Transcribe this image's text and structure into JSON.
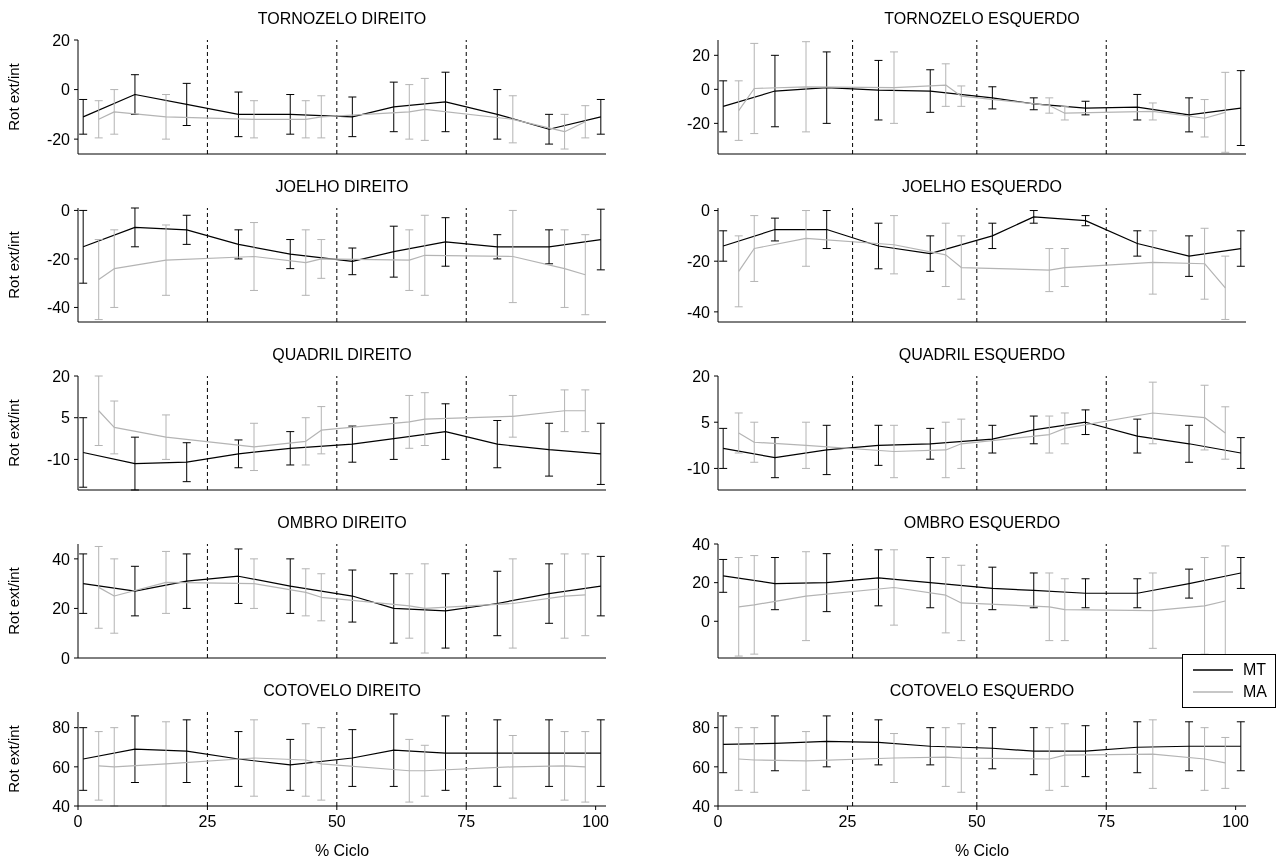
{
  "chart_data": [
    {
      "type": "line",
      "title": "TORNOZELO DIREITO",
      "ylabel": "Rot ext/int",
      "xlim": [
        0,
        102
      ],
      "xticks": [
        0,
        25,
        50,
        75,
        100
      ],
      "ylim": [
        -26,
        20
      ],
      "yticks": [
        -20,
        0,
        20
      ],
      "tick_labels": "y",
      "marker": "none",
      "ref_lines": [
        {
          "axis": "x",
          "value": 25,
          "line_style": "dashed"
        },
        {
          "axis": "x",
          "value": 50,
          "line_style": "dashed"
        },
        {
          "axis": "x",
          "value": 75,
          "line_style": "dashed"
        }
      ],
      "series": [
        {
          "color": "#000000",
          "x": [
            1,
            11,
            21,
            31,
            41,
            53,
            61,
            71,
            81,
            91,
            101
          ],
          "values": [
            -11,
            -2,
            -6,
            -10,
            -10,
            -11,
            -7,
            -5,
            -10,
            -16,
            -11
          ],
          "errors": [
            7,
            8,
            8.5,
            9,
            8,
            8,
            10,
            12,
            10,
            6,
            7
          ]
        },
        {
          "color": "#b4b4b4",
          "x": [
            4,
            7,
            17,
            34,
            44,
            47,
            64,
            67,
            84,
            94,
            98
          ],
          "values": [
            -12,
            -9,
            -11,
            -12,
            -12,
            -11,
            -9,
            -8,
            -12,
            -17,
            -13
          ],
          "errors": [
            7.5,
            9,
            9,
            7.5,
            7.5,
            8.5,
            11,
            12.5,
            9.5,
            7,
            6.5
          ]
        }
      ]
    },
    {
      "type": "line",
      "title": "TORNOZELO ESQUERDO",
      "xlim": [
        0,
        102
      ],
      "xticks": [
        0,
        25,
        50,
        75,
        100
      ],
      "ylim": [
        -38,
        29
      ],
      "yticks": [
        -20,
        0,
        20
      ],
      "tick_labels": "y",
      "marker": "none",
      "ref_lines": [
        {
          "axis": "x",
          "value": 26,
          "line_style": "dashed"
        },
        {
          "axis": "x",
          "value": 50,
          "line_style": "dashed"
        },
        {
          "axis": "x",
          "value": 75,
          "line_style": "dashed"
        }
      ],
      "series": [
        {
          "color": "#000000",
          "x": [
            1,
            11,
            21,
            31,
            41,
            53,
            61,
            71,
            81,
            91,
            101
          ],
          "values": [
            -10,
            -1,
            1,
            -0.5,
            -1,
            -5,
            -8.5,
            -11,
            -10.5,
            -15,
            -11
          ],
          "errors": [
            15,
            21,
            21,
            17.5,
            12.5,
            6.5,
            3.5,
            4,
            7.5,
            10,
            22
          ]
        },
        {
          "color": "#b4b4b4",
          "x": [
            4,
            7,
            17,
            34,
            44,
            47,
            64,
            67,
            84,
            94,
            98
          ],
          "values": [
            -12.5,
            0.5,
            1.5,
            1,
            2.5,
            -4,
            -9.5,
            -14,
            -13,
            -17,
            -13.5
          ],
          "errors": [
            17.5,
            26.5,
            26.5,
            21,
            12.5,
            6,
            4.5,
            4,
            5,
            11,
            23.5
          ]
        }
      ]
    },
    {
      "type": "line",
      "title": "JOELHO DIREITO",
      "ylabel": "Rot ext/int",
      "xlim": [
        0,
        102
      ],
      "xticks": [
        0,
        25,
        50,
        75,
        100
      ],
      "ylim": [
        -46,
        1
      ],
      "yticks": [
        -40,
        -20,
        0
      ],
      "tick_labels": "y",
      "marker": "none",
      "ref_lines": [
        {
          "axis": "x",
          "value": 25,
          "line_style": "dashed"
        },
        {
          "axis": "x",
          "value": 50,
          "line_style": "dashed"
        },
        {
          "axis": "x",
          "value": 75,
          "line_style": "dashed"
        }
      ],
      "series": [
        {
          "color": "#000000",
          "x": [
            1,
            11,
            21,
            31,
            41,
            53,
            61,
            71,
            81,
            91,
            101
          ],
          "values": [
            -15,
            -7,
            -8,
            -14,
            -18,
            -21,
            -17,
            -13,
            -15,
            -15,
            -12
          ],
          "errors": [
            15,
            8,
            6,
            6,
            6,
            5.5,
            10.5,
            10,
            5,
            7,
            12.5
          ]
        },
        {
          "color": "#b4b4b4",
          "x": [
            4,
            7,
            17,
            34,
            44,
            47,
            64,
            67,
            84,
            94,
            98
          ],
          "values": [
            -28.5,
            -24,
            -20.5,
            -19,
            -21.5,
            -20,
            -20.5,
            -18.5,
            -19,
            -24,
            -26.5
          ],
          "errors": [
            16.5,
            16,
            14.5,
            14,
            13.5,
            8,
            12.5,
            16.5,
            19,
            16,
            16.5
          ]
        }
      ]
    },
    {
      "type": "line",
      "title": "JOELHO ESQUERDO",
      "xlim": [
        0,
        102
      ],
      "xticks": [
        0,
        25,
        50,
        75,
        100
      ],
      "ylim": [
        -44,
        1
      ],
      "yticks": [
        -40,
        -20,
        0
      ],
      "tick_labels": "y",
      "marker": "none",
      "ref_lines": [
        {
          "axis": "x",
          "value": 26,
          "line_style": "dashed"
        },
        {
          "axis": "x",
          "value": 50,
          "line_style": "dashed"
        },
        {
          "axis": "x",
          "value": 75,
          "line_style": "dashed"
        }
      ],
      "series": [
        {
          "color": "#000000",
          "x": [
            1,
            11,
            21,
            31,
            41,
            53,
            61,
            71,
            81,
            91,
            101
          ],
          "values": [
            -14,
            -7.5,
            -7.5,
            -14,
            -17,
            -10,
            -2.5,
            -4,
            -13,
            -18,
            -15
          ],
          "errors": [
            6,
            4.5,
            7.5,
            9,
            7,
            5,
            2.5,
            2,
            5,
            8,
            7
          ]
        },
        {
          "color": "#b4b4b4",
          "x": [
            4,
            7,
            17,
            34,
            44,
            47,
            64,
            67,
            84,
            94,
            98
          ],
          "values": [
            -24,
            -15,
            -11,
            -13.5,
            -17.5,
            -22.5,
            -23.5,
            -22.5,
            -20.5,
            -21,
            -30.5
          ],
          "errors": [
            14,
            13,
            11,
            11.5,
            12.5,
            12.5,
            8.5,
            7.5,
            12.5,
            14,
            12.5
          ]
        }
      ]
    },
    {
      "type": "line",
      "title": "QUADRIL DIREITO",
      "ylabel": "Rot ext/int",
      "xlim": [
        0,
        102
      ],
      "xticks": [
        0,
        25,
        50,
        75,
        100
      ],
      "ylim": [
        -21,
        20
      ],
      "yticks": [
        -10,
        5,
        20
      ],
      "tick_labels": "y",
      "marker": "none",
      "ref_lines": [
        {
          "axis": "x",
          "value": 25,
          "line_style": "dashed"
        },
        {
          "axis": "x",
          "value": 50,
          "line_style": "dashed"
        },
        {
          "axis": "x",
          "value": 75,
          "line_style": "dashed"
        }
      ],
      "series": [
        {
          "color": "#000000",
          "x": [
            1,
            11,
            21,
            31,
            41,
            53,
            61,
            71,
            81,
            91,
            101
          ],
          "values": [
            -7.5,
            -11.5,
            -11,
            -8,
            -6,
            -4.5,
            -2.5,
            0,
            -4.5,
            -6.5,
            -8
          ],
          "errors": [
            12.5,
            9.5,
            7,
            5,
            6,
            6.5,
            7.5,
            10,
            8.5,
            9.5,
            11
          ]
        },
        {
          "color": "#b4b4b4",
          "x": [
            4,
            7,
            17,
            34,
            44,
            47,
            64,
            67,
            84,
            94,
            98
          ],
          "values": [
            7.5,
            1.5,
            -2,
            -5.5,
            -3.5,
            0.5,
            3.5,
            4.5,
            5.5,
            7.5,
            7.5
          ],
          "errors": [
            12.5,
            9.5,
            8,
            8.5,
            8.5,
            8.5,
            9.5,
            9.5,
            7.5,
            7.5,
            7.5
          ]
        }
      ]
    },
    {
      "type": "line",
      "title": "QUADRIL ESQUERDO",
      "xlim": [
        0,
        102
      ],
      "xticks": [
        0,
        25,
        50,
        75,
        100
      ],
      "ylim": [
        -17,
        20
      ],
      "yticks": [
        -10,
        5,
        20
      ],
      "tick_labels": "y",
      "marker": "none",
      "ref_lines": [
        {
          "axis": "x",
          "value": 26,
          "line_style": "dashed"
        },
        {
          "axis": "x",
          "value": 50,
          "line_style": "dashed"
        },
        {
          "axis": "x",
          "value": 75,
          "line_style": "dashed"
        }
      ],
      "series": [
        {
          "color": "#000000",
          "x": [
            1,
            11,
            21,
            31,
            41,
            53,
            61,
            71,
            81,
            91,
            101
          ],
          "values": [
            -3.5,
            -6.5,
            -4,
            -2.5,
            -2,
            -0.5,
            2.5,
            5,
            0.5,
            -2,
            -5
          ],
          "errors": [
            6.5,
            6.5,
            8,
            6.5,
            5,
            4.5,
            4.5,
            4,
            5.5,
            6,
            5
          ]
        },
        {
          "color": "#b4b4b4",
          "x": [
            4,
            7,
            17,
            34,
            44,
            47,
            64,
            67,
            84,
            94,
            98
          ],
          "values": [
            1.5,
            -1.5,
            -2.5,
            -4.5,
            -4,
            -2,
            1,
            3,
            8,
            6.5,
            1.5
          ],
          "errors": [
            6.5,
            6.5,
            7.5,
            8.5,
            9,
            8,
            6,
            5,
            10,
            10.5,
            8.5
          ]
        }
      ]
    },
    {
      "type": "line",
      "title": "OMBRO DIREITO",
      "ylabel": "Rot ext/int",
      "xlim": [
        0,
        102
      ],
      "xticks": [
        0,
        25,
        50,
        75,
        100
      ],
      "ylim": [
        0,
        46
      ],
      "yticks": [
        0,
        20,
        40
      ],
      "tick_labels": "y",
      "marker": "none",
      "ref_lines": [
        {
          "axis": "x",
          "value": 25,
          "line_style": "dashed"
        },
        {
          "axis": "x",
          "value": 50,
          "line_style": "dashed"
        },
        {
          "axis": "x",
          "value": 75,
          "line_style": "dashed"
        }
      ],
      "series": [
        {
          "color": "#000000",
          "x": [
            1,
            11,
            21,
            31,
            41,
            53,
            61,
            71,
            81,
            91,
            101
          ],
          "values": [
            30,
            27,
            31,
            33,
            29,
            25,
            20,
            19,
            22,
            26,
            29
          ],
          "errors": [
            12,
            10,
            11,
            11,
            11,
            10.5,
            14,
            15,
            13,
            12,
            12
          ]
        },
        {
          "color": "#b4b4b4",
          "x": [
            4,
            7,
            17,
            34,
            44,
            47,
            64,
            67,
            84,
            94,
            98
          ],
          "values": [
            28.5,
            25,
            30.5,
            30,
            26.5,
            24.5,
            21,
            20,
            22,
            25,
            25.5
          ],
          "errors": [
            16.5,
            15,
            12.5,
            10,
            9.5,
            9.5,
            13,
            18,
            18,
            17,
            16.5
          ]
        }
      ]
    },
    {
      "type": "line",
      "title": "OMBRO ESQUERDO",
      "xlim": [
        0,
        102
      ],
      "xticks": [
        0,
        25,
        50,
        75,
        100
      ],
      "ylim": [
        -19,
        40
      ],
      "yticks": [
        0,
        20,
        40
      ],
      "tick_labels": "y",
      "marker": "none",
      "legend": "bottom right",
      "ref_lines": [
        {
          "axis": "x",
          "value": 26,
          "line_style": "dashed"
        },
        {
          "axis": "x",
          "value": 50,
          "line_style": "dashed"
        },
        {
          "axis": "x",
          "value": 75,
          "line_style": "dashed"
        }
      ],
      "series": [
        {
          "name": "MT",
          "color": "#000000",
          "x": [
            1,
            11,
            21,
            31,
            41,
            53,
            61,
            71,
            81,
            91,
            101
          ],
          "values": [
            23.5,
            19.5,
            20,
            22.5,
            20,
            17,
            16,
            14.5,
            14.5,
            19.5,
            25
          ],
          "errors": [
            8.5,
            13.5,
            15,
            14.5,
            13,
            11,
            9,
            7.5,
            7.5,
            7.5,
            8
          ]
        },
        {
          "name": "MA",
          "color": "#b4b4b4",
          "x": [
            4,
            7,
            17,
            34,
            44,
            47,
            64,
            67,
            84,
            94,
            98
          ],
          "values": [
            7.5,
            8.5,
            13,
            17.5,
            13.5,
            9.5,
            7.5,
            6,
            5.5,
            8,
            10.5
          ],
          "errors": [
            25.5,
            25.5,
            23,
            19.5,
            19.5,
            19.5,
            17.5,
            16,
            19.5,
            25,
            28.5
          ]
        }
      ]
    },
    {
      "type": "line",
      "title": "COTOVELO DIREITO",
      "xlabel": "% Ciclo",
      "ylabel": "Rot ext/int",
      "xlim": [
        0,
        102
      ],
      "xticks": [
        0,
        25,
        50,
        75,
        100
      ],
      "ylim": [
        40,
        88
      ],
      "yticks": [
        40,
        60,
        80
      ],
      "marker": "none",
      "ref_lines": [
        {
          "axis": "x",
          "value": 25,
          "line_style": "dashed"
        },
        {
          "axis": "x",
          "value": 50,
          "line_style": "dashed"
        },
        {
          "axis": "x",
          "value": 75,
          "line_style": "dashed"
        }
      ],
      "series": [
        {
          "color": "#000000",
          "x": [
            1,
            11,
            21,
            31,
            41,
            53,
            61,
            71,
            81,
            91,
            101
          ],
          "values": [
            64,
            69,
            68,
            64,
            61,
            64.5,
            68.5,
            67,
            67,
            67,
            67
          ],
          "errors": [
            16,
            17,
            16,
            14,
            13,
            14.5,
            18.5,
            19,
            17,
            17,
            17
          ]
        },
        {
          "color": "#b4b4b4",
          "x": [
            4,
            7,
            17,
            34,
            44,
            47,
            64,
            67,
            84,
            94,
            98
          ],
          "values": [
            60.5,
            60,
            61.5,
            64.5,
            63.5,
            61.5,
            58,
            58,
            60,
            60.5,
            60
          ],
          "errors": [
            17.5,
            20,
            21.5,
            19.5,
            18.5,
            18.5,
            16,
            13,
            16,
            17.5,
            18
          ]
        }
      ]
    },
    {
      "type": "line",
      "title": "COTOVELO ESQUERDO",
      "xlabel": "% Ciclo",
      "xlim": [
        0,
        102
      ],
      "xticks": [
        0,
        25,
        50,
        75,
        100
      ],
      "ylim": [
        40,
        88
      ],
      "yticks": [
        40,
        60,
        80
      ],
      "marker": "none",
      "ref_lines": [
        {
          "axis": "x",
          "value": 26,
          "line_style": "dashed"
        },
        {
          "axis": "x",
          "value": 50,
          "line_style": "dashed"
        },
        {
          "axis": "x",
          "value": 75,
          "line_style": "dashed"
        }
      ],
      "series": [
        {
          "color": "#000000",
          "x": [
            1,
            11,
            21,
            31,
            41,
            53,
            61,
            71,
            81,
            91,
            101
          ],
          "values": [
            71.5,
            72,
            73,
            72.5,
            70.5,
            69.5,
            68,
            68,
            70,
            70.5,
            70.5
          ],
          "errors": [
            14.5,
            14,
            13,
            11.5,
            9.5,
            10.5,
            12,
            13,
            13,
            12.5,
            12.5
          ]
        },
        {
          "color": "#b4b4b4",
          "x": [
            4,
            7,
            17,
            34,
            44,
            47,
            64,
            67,
            84,
            94,
            98
          ],
          "values": [
            64,
            63.5,
            63,
            64.5,
            65,
            64.5,
            64,
            66,
            66.5,
            64,
            62
          ],
          "errors": [
            16,
            16.5,
            15,
            12.5,
            15,
            17.5,
            16,
            16,
            17.5,
            16,
            13
          ]
        }
      ]
    }
  ]
}
